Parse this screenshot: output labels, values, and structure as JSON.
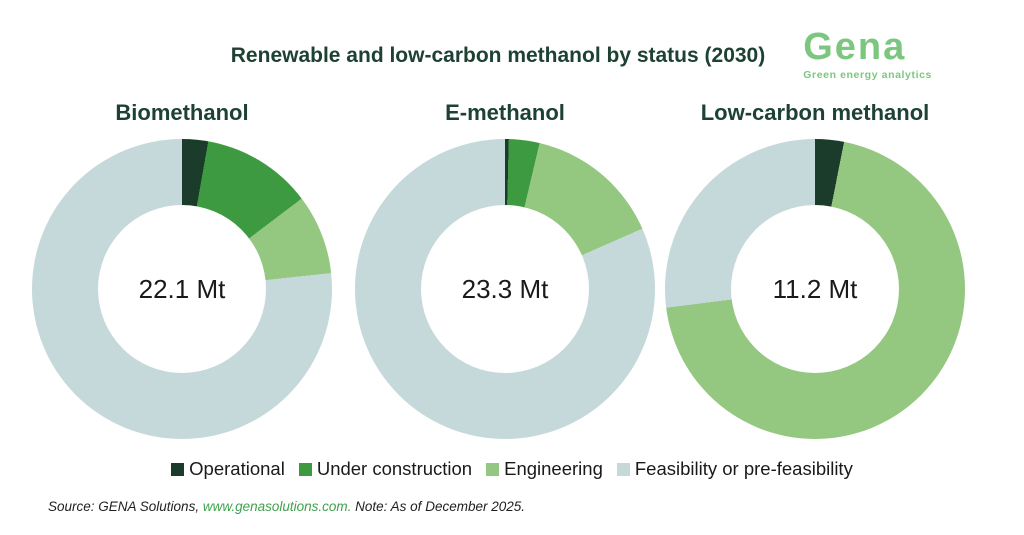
{
  "header": {
    "title": "Renewable and low-carbon methanol by status (2030)",
    "logo_text": "Gena",
    "logo_subtitle": "Green energy analytics"
  },
  "colors": {
    "series": [
      "#1b3c2b",
      "#3e9a40",
      "#94c77f",
      "#c5d8da"
    ],
    "title_text": "#1d4233",
    "logo_green": "#7cc77f",
    "link_green": "#3fa24d",
    "body_text": "#1a1a1a"
  },
  "chart_data": [
    {
      "type": "pie",
      "subtype": "donut",
      "title": "Biomethanol",
      "center_label": "22.1 Mt",
      "total_mt": 22.1,
      "unit": "Mt",
      "categories": [
        "Operational",
        "Under construction",
        "Engineering",
        "Feasibility or pre-feasibility"
      ],
      "shares_pct": [
        2.8,
        11.9,
        8.6,
        76.7
      ],
      "values_mt_est": [
        0.6,
        2.6,
        1.9,
        17.0
      ],
      "start_angle_deg": 0,
      "direction": "clockwise"
    },
    {
      "type": "pie",
      "subtype": "donut",
      "title": "E-methanol",
      "center_label": "23.3 Mt",
      "total_mt": 23.3,
      "unit": "Mt",
      "categories": [
        "Operational",
        "Under construction",
        "Engineering",
        "Feasibility or pre-feasibility"
      ],
      "shares_pct": [
        0.4,
        3.3,
        14.7,
        81.6
      ],
      "values_mt_est": [
        0.1,
        0.8,
        3.4,
        19.0
      ],
      "start_angle_deg": 0,
      "direction": "clockwise"
    },
    {
      "type": "pie",
      "subtype": "donut",
      "title": "Low-carbon methanol",
      "center_label": "11.2 Mt",
      "total_mt": 11.2,
      "unit": "Mt",
      "categories": [
        "Operational",
        "Under construction",
        "Engineering",
        "Feasibility or pre-feasibility"
      ],
      "shares_pct": [
        3.1,
        0,
        69.9,
        27.0
      ],
      "values_mt_est": [
        0.3,
        0,
        7.9,
        3.0
      ],
      "start_angle_deg": 0,
      "direction": "clockwise"
    }
  ],
  "legend": {
    "items": [
      {
        "label": "Operational",
        "color": "#1b3c2b"
      },
      {
        "label": "Under construction",
        "color": "#3e9a40"
      },
      {
        "label": "Engineering",
        "color": "#94c77f"
      },
      {
        "label": "Feasibility or pre-feasibility",
        "color": "#c5d8da"
      }
    ]
  },
  "footer": {
    "source_prefix": "Source: GENA Solutions, ",
    "source_link": "www.genasolutions.com.",
    "source_suffix": " Note: As of December 2025."
  }
}
